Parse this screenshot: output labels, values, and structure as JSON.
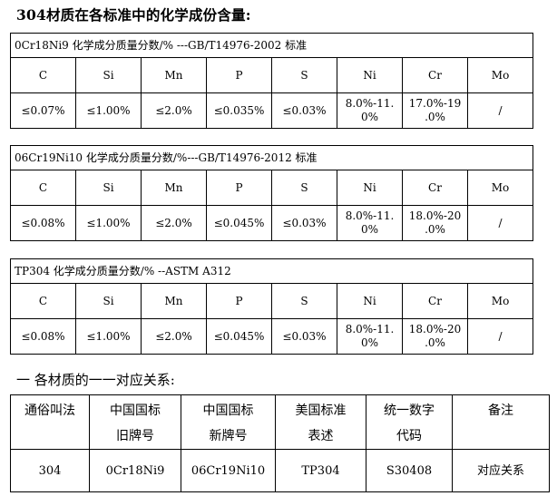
{
  "title": "304材质在各标准中的化学成份含量:",
  "elements": [
    "C",
    "Si",
    "Mn",
    "P",
    "S",
    "Ni",
    "Cr",
    "Mo"
  ],
  "standards": [
    {
      "caption": "0Cr18Ni9 化学成分质量分数/% ---GB/T14976-2002 标准",
      "values": [
        "≤0.07%",
        "≤1.00%",
        "≤2.0%",
        "≤0.035%",
        "≤0.03%",
        "8.0%-11.\n0%",
        "17.0%-19\n.0%",
        "/"
      ]
    },
    {
      "caption": "06Cr19Ni10 化学成分质量分数/%---GB/T14976-2012 标准",
      "values": [
        "≤0.08%",
        "≤1.00%",
        "≤2.0%",
        "≤0.045%",
        "≤0.03%",
        "8.0%-11.\n0%",
        "18.0%-20\n.0%",
        "/"
      ]
    },
    {
      "caption": "TP304 化学成分质量分数/% --ASTM A312",
      "values": [
        "≤0.08%",
        "≤1.00%",
        "≤2.0%",
        "≤0.045%",
        "≤0.03%",
        "8.0%-11.\n0%",
        "18.0%-20\n.0%",
        "/"
      ]
    }
  ],
  "mapping": {
    "title": "一 各材质的一一对应关系:",
    "headers": [
      "通俗叫法",
      "中国国标\n旧牌号",
      "中国国标\n新牌号",
      "美国标准\n表述",
      "统一数字\n代码",
      "备注"
    ],
    "row": [
      "304",
      "0Cr18Ni9",
      "06Cr19Ni10",
      "TP304",
      "S30408",
      "对应关系"
    ]
  }
}
